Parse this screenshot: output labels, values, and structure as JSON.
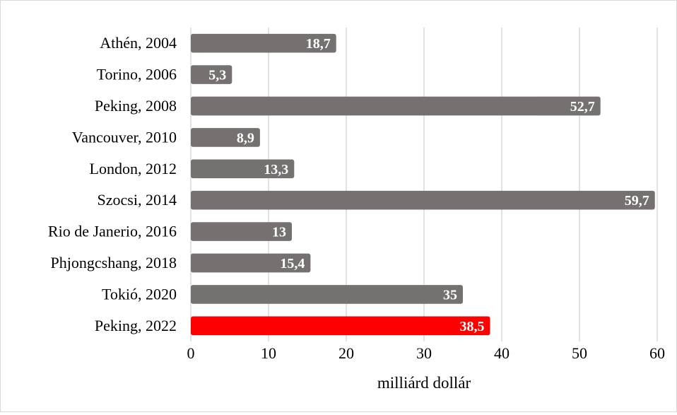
{
  "chart_data": {
    "type": "bar",
    "orientation": "horizontal",
    "categories": [
      "Athén, 2004",
      "Torino, 2006",
      "Peking, 2008",
      "Vancouver, 2010",
      "London, 2012",
      "Szocsi, 2014",
      "Rio de Janerio, 2016",
      "Phjongcshang, 2018",
      "Tokió, 2020",
      "Peking, 2022"
    ],
    "values": [
      18.7,
      5.3,
      52.7,
      8.9,
      13.3,
      59.7,
      13,
      15.4,
      35,
      38.5
    ],
    "data_labels": [
      "18,7",
      "5,3",
      "52,7",
      "8,9",
      "13,3",
      "59,7",
      "13",
      "15,4",
      "35",
      "38,5"
    ],
    "xlabel": "milliárd dollár",
    "ylabel": "",
    "xlim": [
      0,
      60
    ],
    "xticks": [
      "0",
      "10",
      "20",
      "30",
      "40",
      "50",
      "60"
    ],
    "grid": "vertical",
    "colors": {
      "default_bar": "#767171",
      "highlight_bar": "#ff0000",
      "grid": "#d9d9d9"
    },
    "highlight_index": 9
  }
}
